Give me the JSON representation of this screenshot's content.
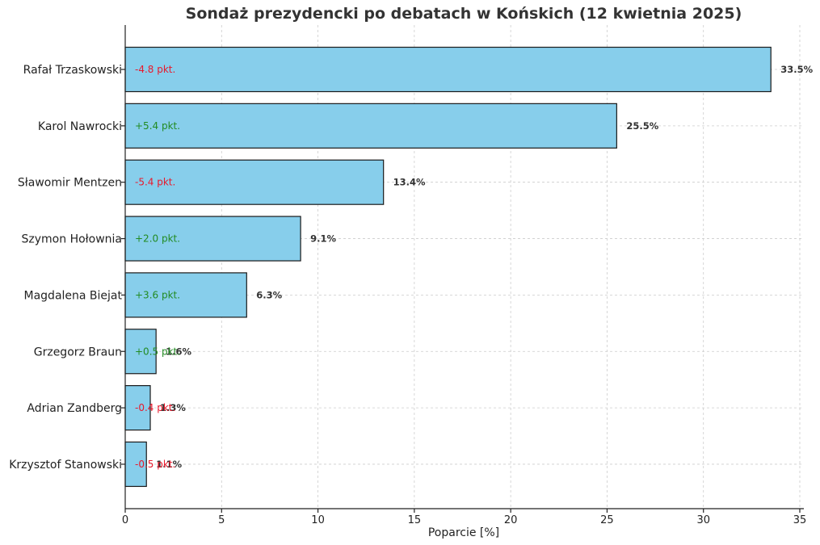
{
  "chart_data": {
    "type": "bar",
    "orientation": "horizontal",
    "title": "Sondaż prezydencki po debatach w Końskich (12 kwietnia 2025)",
    "xlabel": "Poparcie [%]",
    "ylabel": "",
    "xlim": [
      0,
      35
    ],
    "xticks": [
      0,
      5,
      10,
      15,
      20,
      25,
      30,
      35
    ],
    "grid": true,
    "bar_color": "#87CEEB",
    "positive_color": "#228B22",
    "negative_color": "#E8192C",
    "categories": [
      "Rafał Trzaskowski",
      "Karol Nawrocki",
      "Sławomir Mentzen",
      "Szymon Hołownia",
      "Magdalena Biejat",
      "Grzegorz Braun",
      "Adrian Zandberg",
      "Krzysztof Stanowski"
    ],
    "values": [
      33.5,
      25.5,
      13.4,
      9.1,
      6.3,
      1.6,
      1.3,
      1.1
    ],
    "value_labels": [
      "33.5%",
      "25.5%",
      "13.4%",
      "9.1%",
      "6.3%",
      "1.6%",
      "1.3%",
      "1.1%"
    ],
    "change_labels": [
      "-4.8 pkt.",
      "+5.4 pkt.",
      "-5.4 pkt.",
      "+2.0 pkt.",
      "+3.6 pkt.",
      "+0.5 pkt.",
      "-0.4 pkt.",
      "-0.5 pkt."
    ]
  }
}
